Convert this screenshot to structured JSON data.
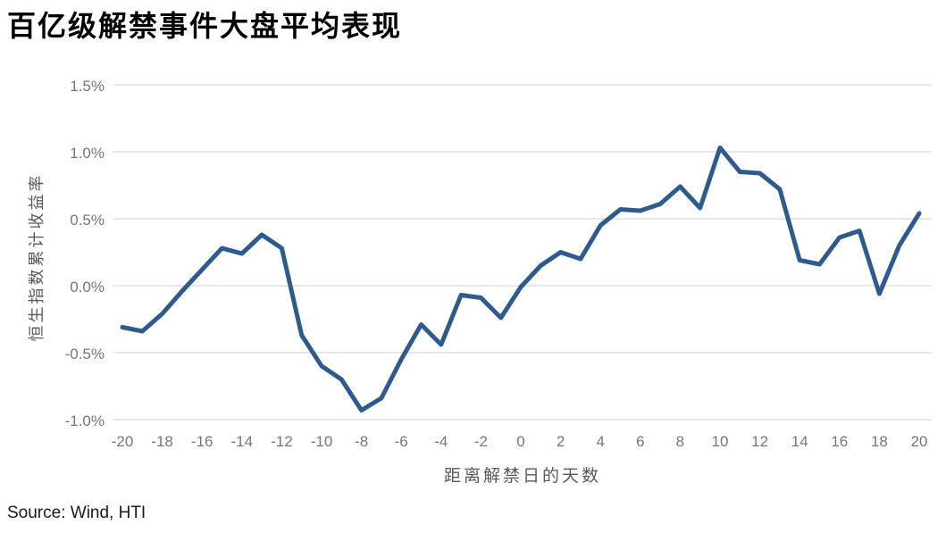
{
  "title": "百亿级解禁事件大盘平均表现",
  "source": "Source: Wind, HTI",
  "chart_data": {
    "type": "line",
    "title": "百亿级解禁事件大盘平均表现",
    "xlabel": "距离解禁日的天数",
    "ylabel": "恒生指数累计收益率",
    "x": [
      -20,
      -19,
      -18,
      -17,
      -16,
      -15,
      -14,
      -13,
      -12,
      -11,
      -10,
      -9,
      -8,
      -7,
      -6,
      -5,
      -4,
      -3,
      -2,
      -1,
      0,
      1,
      2,
      3,
      4,
      5,
      6,
      7,
      8,
      9,
      10,
      11,
      12,
      13,
      14,
      15,
      16,
      17,
      18,
      19,
      20
    ],
    "values": [
      -0.31,
      -0.34,
      -0.21,
      -0.04,
      0.12,
      0.28,
      0.24,
      0.38,
      0.28,
      -0.37,
      -0.6,
      -0.7,
      -0.93,
      -0.84,
      -0.55,
      -0.29,
      -0.44,
      -0.07,
      -0.09,
      -0.24,
      -0.01,
      0.15,
      0.25,
      0.2,
      0.45,
      0.57,
      0.56,
      0.61,
      0.74,
      0.58,
      1.03,
      0.85,
      0.84,
      0.72,
      0.19,
      0.16,
      0.36,
      0.41,
      -0.06,
      0.3,
      0.54
    ],
    "unit": "%",
    "ylim": [
      -1.0,
      1.5
    ],
    "xlim": [
      -20,
      20
    ],
    "ytick_values": [
      1.5,
      1.0,
      0.5,
      0.0,
      -0.5,
      -1.0
    ],
    "ytick_labels": [
      "1.5%",
      "1.0%",
      "0.5%",
      "0.0%",
      "-0.5%",
      "-1.0%"
    ],
    "xtick_values": [
      -20,
      -18,
      -16,
      -14,
      -12,
      -10,
      -8,
      -6,
      -4,
      -2,
      0,
      2,
      4,
      6,
      8,
      10,
      12,
      14,
      16,
      18,
      20
    ],
    "xtick_labels": [
      "-20",
      "-18",
      "-16",
      "-14",
      "-12",
      "-10",
      "-8",
      "-6",
      "-4",
      "-2",
      "0",
      "2",
      "4",
      "6",
      "8",
      "10",
      "12",
      "14",
      "16",
      "18",
      "20"
    ],
    "grid": true,
    "legend": false,
    "line_color": "#2E5B8F",
    "gridline_color": "#D9D9D9",
    "tick_color": "#767676"
  }
}
